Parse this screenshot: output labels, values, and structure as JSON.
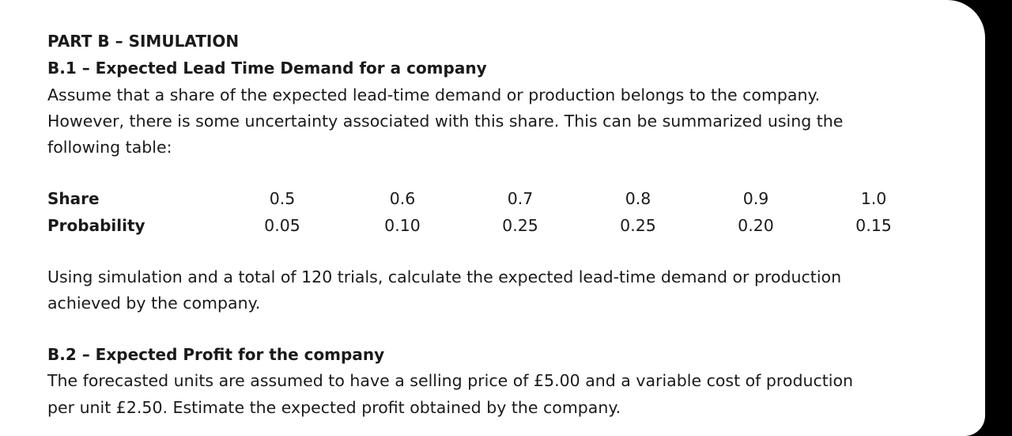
{
  "part_title": "PART B – SIMULATION",
  "section1": {
    "title": "B.1 – Expected Lead Time Demand for a company",
    "paragraph_lines": [
      "Assume that a share of the expected lead-time demand or production belongs to the company.",
      "However, there is some uncertainty associated with this share. This can be summarized using the",
      "following table:"
    ],
    "table": {
      "share_label": "Share",
      "probability_label": "Probability",
      "shares": [
        "0.5",
        "0.6",
        "0.7",
        "0.8",
        "0.9",
        "1.0"
      ],
      "probabilities": [
        "0.05",
        "0.10",
        "0.25",
        "0.25",
        "0.20",
        "0.15"
      ]
    },
    "question_lines": [
      "Using simulation and a total of 120 trials, calculate the expected lead-time demand or production",
      "achieved by the company."
    ]
  },
  "section2": {
    "title": "B.2 – Expected Profit for the company",
    "paragraph_lines": [
      "The forecasted units are assumed to have a selling price of £5.00 and a variable cost of production",
      "per unit £2.50. Estimate the expected profit obtained by the company."
    ]
  }
}
